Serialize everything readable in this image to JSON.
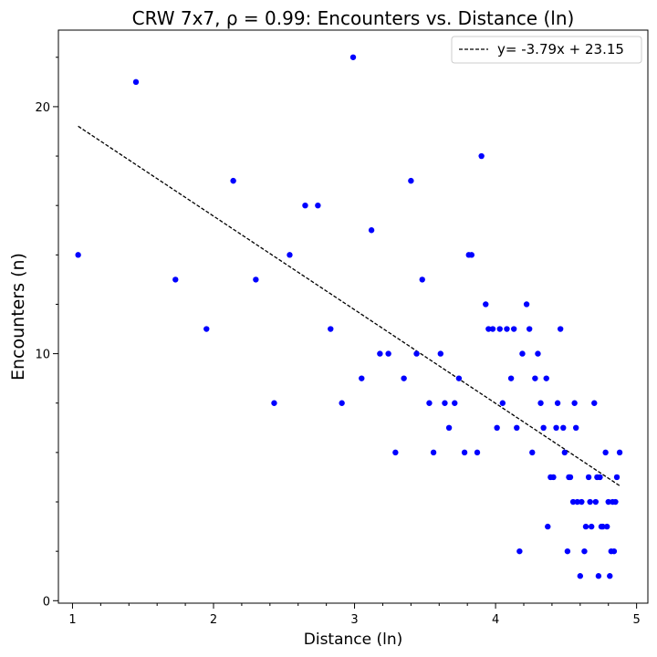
{
  "chart_data": {
    "type": "scatter",
    "title": "CRW 7x7, ρ = 0.99: Encounters vs. Distance (ln)",
    "xlabel": "Distance (ln)",
    "ylabel": "Encounters (n)",
    "xlim": [
      0.9,
      5.08
    ],
    "ylim": [
      -0.1,
      23.1
    ],
    "x_ticks": [
      1,
      2,
      3,
      4,
      5
    ],
    "x_tick_labels": [
      "1",
      "2",
      "3",
      "4",
      "5"
    ],
    "x_minor_ticks": [
      1.2,
      1.4,
      1.6,
      1.8,
      2.2,
      2.4,
      2.6,
      2.8,
      3.2,
      3.4,
      3.6,
      3.8,
      4.2,
      4.4,
      4.6,
      4.8
    ],
    "y_ticks": [
      0,
      10,
      20
    ],
    "y_tick_labels": [
      "0",
      "10",
      "20"
    ],
    "y_minor_ticks": [
      2,
      4,
      6,
      8,
      12,
      14,
      16,
      18,
      22
    ],
    "grid": false,
    "legend": {
      "position": "top-right",
      "entries": [
        "y= -3.79x + 23.15"
      ]
    },
    "colors": {
      "points": "#0000ff",
      "fit_line": "#000000"
    },
    "fit_line": {
      "slope": -3.79,
      "intercept": 23.15,
      "x_range": [
        1.04,
        4.88
      ],
      "style": "dashed"
    },
    "series": [
      {
        "marker": "circle",
        "points": [
          [
            1.04,
            14
          ],
          [
            1.45,
            21
          ],
          [
            1.73,
            13
          ],
          [
            1.95,
            11
          ],
          [
            2.14,
            17
          ],
          [
            2.3,
            13
          ],
          [
            2.43,
            8
          ],
          [
            2.54,
            14
          ],
          [
            2.65,
            16
          ],
          [
            2.74,
            16
          ],
          [
            2.83,
            11
          ],
          [
            2.91,
            8
          ],
          [
            2.99,
            22
          ],
          [
            3.05,
            9
          ],
          [
            3.12,
            15
          ],
          [
            3.18,
            10
          ],
          [
            3.24,
            10
          ],
          [
            3.29,
            6
          ],
          [
            3.35,
            9
          ],
          [
            3.4,
            17
          ],
          [
            3.44,
            10
          ],
          [
            3.48,
            13
          ],
          [
            3.53,
            8
          ],
          [
            3.56,
            6
          ],
          [
            3.61,
            10
          ],
          [
            3.64,
            8
          ],
          [
            3.67,
            7
          ],
          [
            3.71,
            8
          ],
          [
            3.74,
            9
          ],
          [
            3.78,
            6
          ],
          [
            3.81,
            14
          ],
          [
            3.83,
            14
          ],
          [
            3.87,
            6
          ],
          [
            3.9,
            18
          ],
          [
            3.93,
            12
          ],
          [
            3.95,
            11
          ],
          [
            3.98,
            11
          ],
          [
            4.01,
            7
          ],
          [
            4.03,
            11
          ],
          [
            4.05,
            8
          ],
          [
            4.08,
            11
          ],
          [
            4.11,
            9
          ],
          [
            4.13,
            11
          ],
          [
            4.15,
            7
          ],
          [
            4.17,
            2
          ],
          [
            4.19,
            10
          ],
          [
            4.22,
            12
          ],
          [
            4.24,
            11
          ],
          [
            4.26,
            6
          ],
          [
            4.28,
            9
          ],
          [
            4.3,
            10
          ],
          [
            4.32,
            8
          ],
          [
            4.34,
            7
          ],
          [
            4.36,
            9
          ],
          [
            4.37,
            3
          ],
          [
            4.39,
            5
          ],
          [
            4.41,
            5
          ],
          [
            4.43,
            7
          ],
          [
            4.44,
            8
          ],
          [
            4.46,
            11
          ],
          [
            4.48,
            7
          ],
          [
            4.49,
            6
          ],
          [
            4.51,
            2
          ],
          [
            4.52,
            5
          ],
          [
            4.53,
            5
          ],
          [
            4.55,
            4
          ],
          [
            4.56,
            8
          ],
          [
            4.57,
            7
          ],
          [
            4.58,
            4
          ],
          [
            4.6,
            1
          ],
          [
            4.61,
            4
          ],
          [
            4.63,
            2
          ],
          [
            4.64,
            3
          ],
          [
            4.66,
            5
          ],
          [
            4.67,
            4
          ],
          [
            4.68,
            3
          ],
          [
            4.7,
            8
          ],
          [
            4.71,
            4
          ],
          [
            4.72,
            5
          ],
          [
            4.73,
            1
          ],
          [
            4.74,
            5
          ],
          [
            4.75,
            3
          ],
          [
            4.76,
            3
          ],
          [
            4.78,
            6
          ],
          [
            4.79,
            3
          ],
          [
            4.8,
            4
          ],
          [
            4.81,
            1
          ],
          [
            4.82,
            2
          ],
          [
            4.83,
            4
          ],
          [
            4.84,
            2
          ],
          [
            4.85,
            4
          ],
          [
            4.86,
            5
          ],
          [
            4.88,
            6
          ]
        ]
      }
    ]
  }
}
